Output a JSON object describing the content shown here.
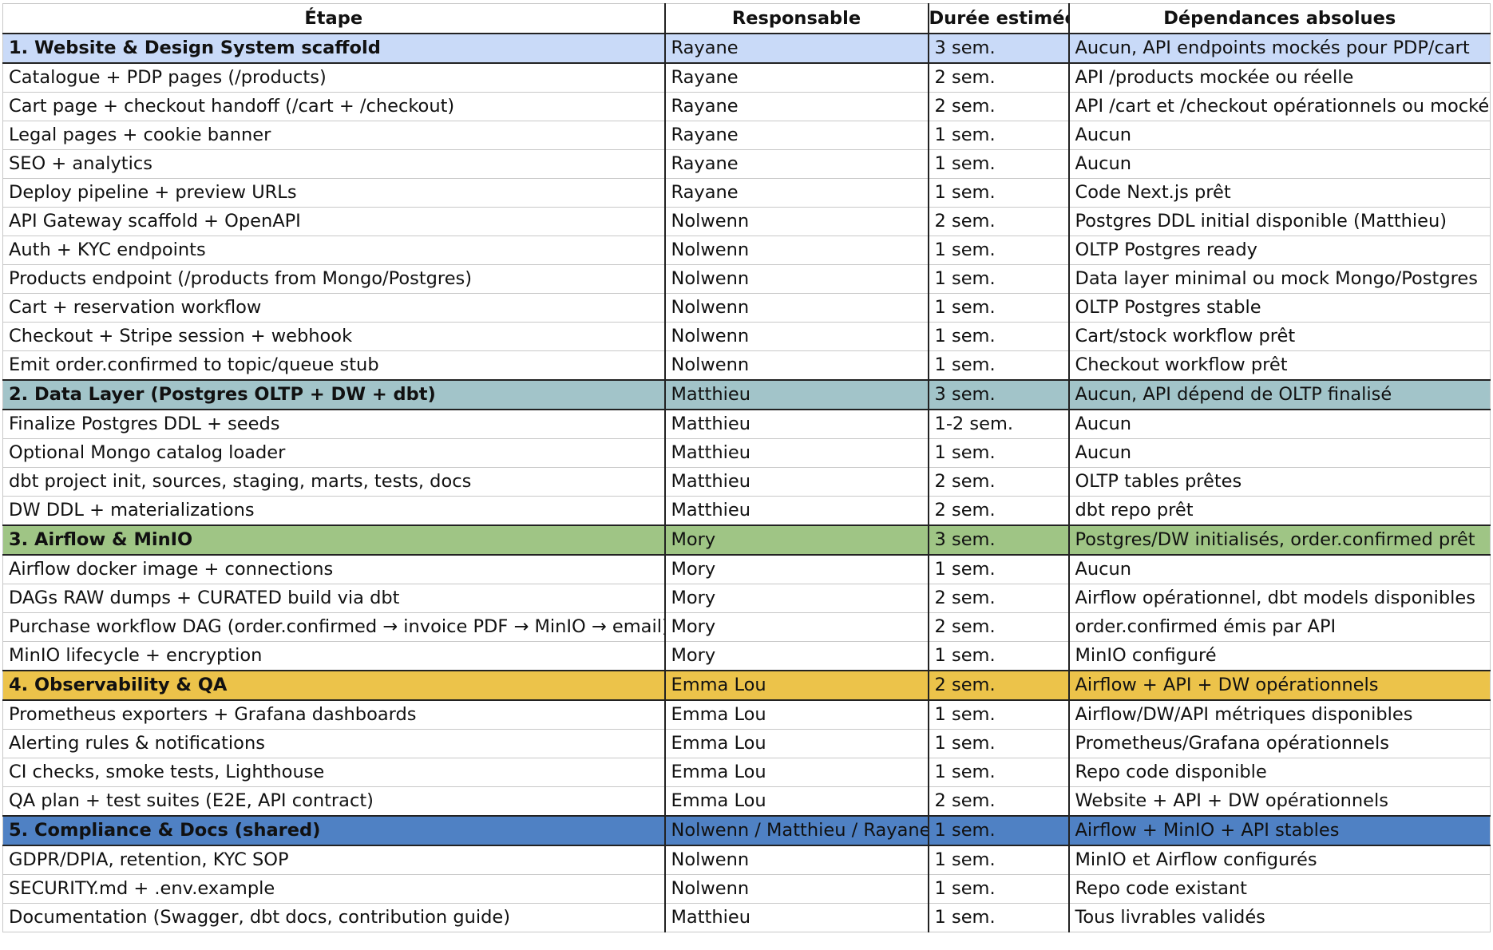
{
  "headers": [
    "Étape",
    "Responsable",
    "Durée estimée",
    "Dépendances absolues"
  ],
  "rows": [
    {
      "section": "sec1",
      "etape": "1. Website & Design System scaffold",
      "responsable": "Rayane",
      "duree": "3 sem.",
      "dependances": "Aucun, API endpoints mockés pour PDP/cart"
    },
    {
      "etape": "Catalogue + PDP pages (/products)",
      "responsable": "Rayane",
      "duree": "2 sem.",
      "dependances": "API /products mockée ou réelle"
    },
    {
      "etape": "Cart page + checkout handoff (/cart + /checkout)",
      "responsable": "Rayane",
      "duree": "2 sem.",
      "dependances": "API /cart et /checkout opérationnels ou mockés"
    },
    {
      "etape": "Legal pages + cookie banner",
      "responsable": "Rayane",
      "duree": "1 sem.",
      "dependances": "Aucun"
    },
    {
      "etape": "SEO + analytics",
      "responsable": "Rayane",
      "duree": "1 sem.",
      "dependances": "Aucun"
    },
    {
      "etape": "Deploy pipeline + preview URLs",
      "responsable": "Rayane",
      "duree": "1 sem.",
      "dependances": "Code Next.js prêt"
    },
    {
      "etape": "API Gateway scaffold + OpenAPI",
      "responsable": "Nolwenn",
      "duree": "2 sem.",
      "dependances": "Postgres DDL initial disponible (Matthieu)"
    },
    {
      "etape": "Auth + KYC endpoints",
      "responsable": "Nolwenn",
      "duree": "1 sem.",
      "dependances": "OLTP Postgres ready"
    },
    {
      "etape": "Products endpoint (/products from Mongo/Postgres)",
      "responsable": "Nolwenn",
      "duree": "1 sem.",
      "dependances": "Data layer minimal ou mock Mongo/Postgres"
    },
    {
      "etape": "Cart + reservation workflow",
      "responsable": "Nolwenn",
      "duree": "1 sem.",
      "dependances": "OLTP Postgres stable"
    },
    {
      "etape": "Checkout + Stripe session + webhook",
      "responsable": "Nolwenn",
      "duree": "1 sem.",
      "dependances": "Cart/stock workflow prêt"
    },
    {
      "etape": "Emit order.confirmed to topic/queue stub",
      "responsable": "Nolwenn",
      "duree": "1 sem.",
      "dependances": "Checkout workflow prêt"
    },
    {
      "section": "sec2",
      "etape": "2. Data Layer (Postgres OLTP + DW + dbt)",
      "responsable": "Matthieu",
      "duree": "3 sem.",
      "dependances": "Aucun, API dépend de OLTP finalisé"
    },
    {
      "etape": "Finalize Postgres DDL + seeds",
      "responsable": "Matthieu",
      "duree": "1-2 sem.",
      "dependances": "Aucun"
    },
    {
      "etape": "Optional Mongo catalog loader",
      "responsable": "Matthieu",
      "duree": "1 sem.",
      "dependances": "Aucun"
    },
    {
      "etape": "dbt project init, sources, staging, marts, tests, docs",
      "responsable": "Matthieu",
      "duree": "2 sem.",
      "dependances": "OLTP tables prêtes"
    },
    {
      "etape": "DW DDL + materializations",
      "responsable": "Matthieu",
      "duree": "2 sem.",
      "dependances": "dbt repo prêt"
    },
    {
      "section": "sec3",
      "etape": "3. Airflow & MinIO",
      "responsable": "Mory",
      "duree": "3 sem.",
      "dependances": "Postgres/DW initialisés, order.confirmed prêt"
    },
    {
      "etape": "Airflow docker image + connections",
      "responsable": "Mory",
      "duree": "1 sem.",
      "dependances": "Aucun"
    },
    {
      "etape": "DAGs RAW dumps + CURATED build via dbt",
      "responsable": "Mory",
      "duree": "2 sem.",
      "dependances": "Airflow opérationnel, dbt models disponibles"
    },
    {
      "etape": "Purchase workflow DAG (order.confirmed → invoice PDF → MinIO → email)",
      "responsable": "Mory",
      "duree": "2 sem.",
      "dependances": "order.confirmed émis par API"
    },
    {
      "etape": "MinIO lifecycle + encryption",
      "responsable": "Mory",
      "duree": "1 sem.",
      "dependances": "MinIO configuré"
    },
    {
      "section": "sec4",
      "etape": "4. Observability & QA",
      "responsable": "Emma Lou",
      "duree": "2 sem.",
      "dependances": "Airflow + API + DW opérationnels"
    },
    {
      "etape": "Prometheus exporters + Grafana dashboards",
      "responsable": "Emma Lou",
      "duree": "1 sem.",
      "dependances": "Airflow/DW/API métriques disponibles"
    },
    {
      "etape": "Alerting rules & notifications",
      "responsable": "Emma Lou",
      "duree": "1 sem.",
      "dependances": "Prometheus/Grafana opérationnels"
    },
    {
      "etape": "CI checks, smoke tests, Lighthouse",
      "responsable": "Emma Lou",
      "duree": "1 sem.",
      "dependances": "Repo code disponible"
    },
    {
      "etape": "QA plan + test suites (E2E, API contract)",
      "responsable": "Emma Lou",
      "duree": "2 sem.",
      "dependances": "Website + API + DW opérationnels"
    },
    {
      "section": "sec5",
      "etape": "5. Compliance & Docs (shared)",
      "responsable": "Nolwenn / Matthieu / Rayane",
      "duree": "1 sem.",
      "dependances": "Airflow + MinIO + API stables"
    },
    {
      "etape": "GDPR/DPIA, retention, KYC SOP",
      "responsable": "Nolwenn",
      "duree": "1 sem.",
      "dependances": "MinIO et Airflow configurés"
    },
    {
      "etape": "SECURITY.md + .env.example",
      "responsable": "Nolwenn",
      "duree": "1 sem.",
      "dependances": "Repo code existant"
    },
    {
      "etape": "Documentation (Swagger, dbt docs, contribution guide)",
      "responsable": "Matthieu",
      "duree": "1 sem.",
      "dependances": "Tous livrables validés"
    }
  ]
}
